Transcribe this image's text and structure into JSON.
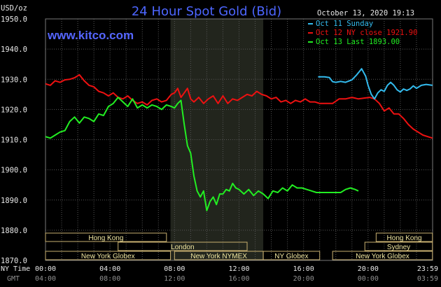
{
  "chart_data": {
    "type": "line",
    "title": "24 Hour Spot Gold (Bid)",
    "ylabel": "USD/oz",
    "date_label": "October 13, 2020 19:13",
    "site": "www.kitco.com",
    "ylim": [
      1870,
      1950
    ],
    "y_ticks": [
      "1950.0",
      "1940.0",
      "1930.0",
      "1920.0",
      "1910.0",
      "1900.0",
      "1890.0",
      "1880.0",
      "1870.0"
    ],
    "y_tick_values": [
      1950,
      1940,
      1930,
      1920,
      1910,
      1900,
      1890,
      1880,
      1870
    ],
    "x_row_label": "NY Time",
    "x_ticks": [
      "00:00",
      "04:00",
      "08:00",
      "12:00",
      "16:00",
      "20:00",
      "23:59"
    ],
    "x_tick_hours": [
      0,
      4,
      8,
      12,
      16,
      20,
      24
    ],
    "gmt_row_label": "GMT",
    "gmt_ticks": [
      "04:00",
      "08:00",
      "12:00",
      "16:00",
      "20:00",
      "00:00",
      "03:59"
    ],
    "shaded_region": [
      7.75,
      13.5
    ],
    "grid": true,
    "legend_position": "top-right",
    "colors": {
      "sunday": "#33bbee",
      "ny_close": "#ee1111",
      "last": "#22ee22",
      "grid": "#555555",
      "shade": "#22251d",
      "title": "#4d66ff",
      "session_box": "#c8b070"
    },
    "series": [
      {
        "name": "Oct 11 Sunday",
        "color": "#33bbee",
        "x": [
          16.9,
          17.3,
          17.6,
          17.8,
          18.0,
          18.3,
          18.6,
          19.0,
          19.3,
          19.6,
          19.85,
          20.0,
          20.2,
          20.4,
          20.6,
          20.8,
          21.0,
          21.2,
          21.4,
          21.6,
          21.8,
          22.0,
          22.2,
          22.4,
          22.6,
          22.8,
          23.0,
          23.3,
          23.6,
          23.99
        ],
        "values": [
          1930.8,
          1930.8,
          1930.6,
          1929.2,
          1929.0,
          1929.3,
          1929.0,
          1929.8,
          1931.5,
          1933.5,
          1931.0,
          1928.0,
          1925.0,
          1923.5,
          1925.5,
          1926.5,
          1926.0,
          1928.0,
          1929.0,
          1928.0,
          1926.5,
          1925.8,
          1926.8,
          1926.3,
          1926.8,
          1927.8,
          1927.0,
          1928.0,
          1928.3,
          1928.0
        ]
      },
      {
        "name": "Oct 12 NY close 1921.90",
        "color": "#ee1111",
        "x": [
          0,
          0.3,
          0.6,
          0.9,
          1.2,
          1.5,
          1.8,
          2.1,
          2.4,
          2.7,
          3.0,
          3.3,
          3.6,
          3.9,
          4.2,
          4.5,
          4.8,
          5.1,
          5.4,
          5.7,
          6.0,
          6.3,
          6.6,
          6.9,
          7.2,
          7.5,
          7.8,
          8.0,
          8.2,
          8.4,
          8.6,
          8.8,
          9.0,
          9.2,
          9.5,
          9.8,
          10.1,
          10.4,
          10.7,
          11.0,
          11.3,
          11.6,
          11.9,
          12.2,
          12.5,
          12.8,
          13.1,
          13.4,
          13.7,
          14.0,
          14.3,
          14.6,
          14.9,
          15.2,
          15.5,
          15.8,
          16.1,
          16.4,
          16.7,
          17.0,
          17.4,
          17.8,
          18.2,
          18.6,
          19.0,
          19.4,
          19.8,
          20.1,
          20.4,
          20.7,
          21.0,
          21.3,
          21.6,
          21.9,
          22.2,
          22.5,
          22.8,
          23.1,
          23.4,
          23.7,
          23.99
        ],
        "values": [
          1928.5,
          1928.0,
          1929.5,
          1929.0,
          1929.8,
          1930.0,
          1930.5,
          1931.5,
          1929.5,
          1928.0,
          1927.5,
          1926.0,
          1925.5,
          1924.5,
          1925.5,
          1924.0,
          1923.5,
          1924.5,
          1923.0,
          1922.0,
          1922.5,
          1921.5,
          1923.0,
          1923.5,
          1922.5,
          1923.0,
          1925.0,
          1925.5,
          1927.0,
          1924.0,
          1925.5,
          1927.0,
          1923.5,
          1922.5,
          1924.0,
          1922.0,
          1923.5,
          1924.5,
          1922.0,
          1924.5,
          1922.0,
          1923.5,
          1923.0,
          1924.0,
          1925.0,
          1924.5,
          1926.0,
          1925.0,
          1924.5,
          1923.5,
          1924.0,
          1922.5,
          1923.0,
          1922.0,
          1923.0,
          1922.5,
          1923.5,
          1922.5,
          1922.5,
          1922.0,
          1922.0,
          1922.0,
          1923.5,
          1923.5,
          1924.0,
          1923.5,
          1923.8,
          1924.0,
          1923.5,
          1922.0,
          1919.5,
          1920.5,
          1918.5,
          1918.5,
          1917.0,
          1915.0,
          1913.5,
          1912.5,
          1911.5,
          1911.0,
          1910.5
        ]
      },
      {
        "name": "Oct 13 Last 1893.00",
        "color": "#22ee22",
        "x": [
          0,
          0.3,
          0.6,
          0.9,
          1.2,
          1.5,
          1.8,
          2.1,
          2.4,
          2.7,
          3.0,
          3.3,
          3.6,
          3.9,
          4.2,
          4.5,
          4.8,
          5.1,
          5.4,
          5.7,
          6.0,
          6.3,
          6.6,
          6.9,
          7.2,
          7.5,
          7.8,
          8.0,
          8.2,
          8.4,
          8.6,
          8.8,
          9.0,
          9.2,
          9.4,
          9.6,
          9.8,
          10.0,
          10.2,
          10.4,
          10.6,
          10.8,
          11.0,
          11.2,
          11.4,
          11.6,
          11.8,
          12.0,
          12.3,
          12.6,
          12.9,
          13.2,
          13.5,
          13.8,
          14.1,
          14.4,
          14.7,
          15.0,
          15.3,
          15.6,
          15.9,
          16.2,
          16.5,
          16.8,
          17.1,
          17.4,
          17.7,
          18.0,
          18.3,
          18.6,
          18.9,
          19.2,
          19.4
        ],
        "values": [
          1911.0,
          1910.5,
          1911.5,
          1912.5,
          1913.0,
          1916.0,
          1917.5,
          1915.5,
          1917.5,
          1917.0,
          1916.0,
          1918.5,
          1918.0,
          1921.0,
          1922.0,
          1924.0,
          1922.5,
          1921.0,
          1923.5,
          1920.5,
          1921.5,
          1920.5,
          1921.5,
          1921.0,
          1920.0,
          1921.5,
          1921.0,
          1920.5,
          1922.0,
          1923.0,
          1915.0,
          1908.0,
          1905.5,
          1898.0,
          1893.0,
          1891.0,
          1893.0,
          1886.5,
          1889.5,
          1891.0,
          1888.5,
          1892.0,
          1892.0,
          1893.5,
          1893.0,
          1895.5,
          1894.0,
          1893.5,
          1892.0,
          1893.5,
          1891.5,
          1893.0,
          1892.0,
          1890.5,
          1893.0,
          1892.5,
          1894.0,
          1893.0,
          1895.0,
          1894.0,
          1894.0,
          1893.5,
          1893.0,
          1892.5,
          1892.5,
          1892.5,
          1892.5,
          1892.5,
          1892.5,
          1893.5,
          1894.0,
          1893.5,
          1893.0
        ]
      }
    ],
    "sessions": [
      {
        "label": "Hong Kong",
        "start": 0,
        "end": 7.5,
        "row": 0
      },
      {
        "label": "London",
        "start": 4.5,
        "end": 12.5,
        "row": 1
      },
      {
        "label": "New York Globex",
        "start": 0,
        "end": 7.75,
        "row": 2
      },
      {
        "label": "New York NYMEX",
        "start": 8.0,
        "end": 13.5,
        "row": 2
      },
      {
        "label": "NY Globex",
        "start": 13.5,
        "end": 17.0,
        "row": 2
      },
      {
        "label": "Hong Kong",
        "start": 20.5,
        "end": 23.99,
        "row": 0
      },
      {
        "label": "Sydney",
        "start": 19.8,
        "end": 23.99,
        "row": 1
      },
      {
        "label": "New York Globex",
        "start": 17.8,
        "end": 23.99,
        "row": 2
      }
    ]
  }
}
